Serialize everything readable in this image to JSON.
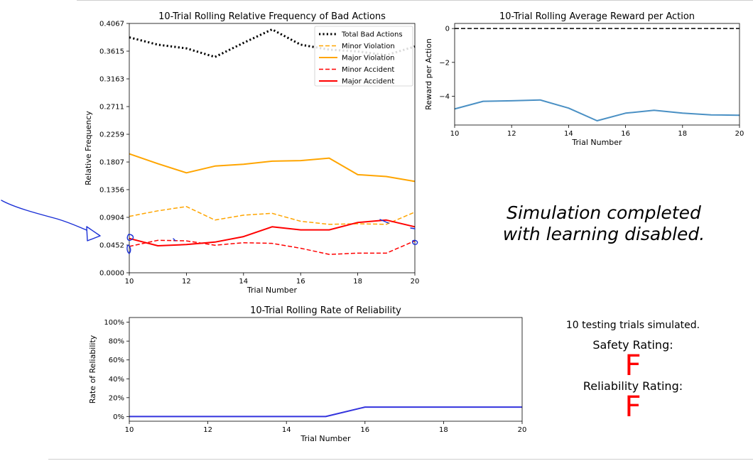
{
  "chart_data": [
    {
      "type": "line",
      "title": "10-Trial Rolling Relative Frequency of Bad Actions",
      "xlabel": "Trial Number",
      "ylabel": "Relative Frequency",
      "xlim": [
        10,
        20
      ],
      "ylim": [
        0,
        0.4067
      ],
      "xticks": [
        "10",
        "12",
        "14",
        "16",
        "18",
        "20"
      ],
      "yticks": [
        "0.0000",
        "0.0452",
        "0.0904",
        "0.1356",
        "0.1807",
        "0.2259",
        "0.2711",
        "0.3163",
        "0.3615",
        "0.4067"
      ],
      "legend_position": "top-right",
      "x": [
        10,
        11,
        12,
        13,
        14,
        15,
        16,
        17,
        18,
        19,
        20
      ],
      "series": [
        {
          "name": "Total Bad Actions",
          "color": "#000000",
          "style": "dotted",
          "values": [
            0.384,
            0.372,
            0.366,
            0.352,
            0.375,
            0.397,
            0.372,
            0.364,
            0.361,
            0.355,
            0.369
          ]
        },
        {
          "name": "Minor Violation",
          "color": "#ffa500",
          "style": "dashed",
          "values": [
            0.092,
            0.101,
            0.108,
            0.086,
            0.094,
            0.097,
            0.084,
            0.079,
            0.08,
            0.079,
            0.099
          ]
        },
        {
          "name": "Major Violation",
          "color": "#ffa500",
          "style": "solid",
          "values": [
            0.194,
            0.178,
            0.163,
            0.174,
            0.177,
            0.182,
            0.183,
            0.187,
            0.16,
            0.157,
            0.149
          ]
        },
        {
          "name": "Minor Accident",
          "color": "#ff0000",
          "style": "dashed",
          "values": [
            0.043,
            0.053,
            0.052,
            0.045,
            0.049,
            0.048,
            0.04,
            0.03,
            0.032,
            0.032,
            0.052
          ]
        },
        {
          "name": "Major Accident",
          "color": "#ff0000",
          "style": "solid",
          "values": [
            0.056,
            0.044,
            0.046,
            0.05,
            0.059,
            0.075,
            0.07,
            0.07,
            0.082,
            0.086,
            0.075
          ]
        }
      ]
    },
    {
      "type": "line",
      "title": "10-Trial Rolling Average Reward per Action",
      "xlabel": "Trial Number",
      "ylabel": "Reward per Action",
      "xlim": [
        10,
        20
      ],
      "ylim": [
        -5.7,
        0.3
      ],
      "xticks": [
        "10",
        "12",
        "14",
        "16",
        "18",
        "20"
      ],
      "yticks": [
        "0",
        "−2",
        "−4"
      ],
      "reference_line": {
        "y": 0,
        "color": "#000000",
        "style": "dashed"
      },
      "x": [
        10,
        11,
        12,
        13,
        14,
        15,
        16,
        17,
        18,
        19,
        20
      ],
      "series": [
        {
          "color": "#4a90c4",
          "values": [
            -4.75,
            -4.3,
            -4.27,
            -4.22,
            -4.7,
            -5.45,
            -5.0,
            -4.83,
            -5.0,
            -5.1,
            -5.12
          ]
        }
      ]
    },
    {
      "type": "line",
      "title": "10-Trial Rolling Rate of Reliability",
      "xlabel": "Trial Number",
      "ylabel": "Rate of Reliability",
      "xlim": [
        10,
        20
      ],
      "ylim": [
        -5,
        105
      ],
      "xticks": [
        "10",
        "12",
        "14",
        "16",
        "18",
        "20"
      ],
      "yticks": [
        "0%",
        "20%",
        "40%",
        "60%",
        "80%",
        "100%"
      ],
      "x": [
        10,
        11,
        12,
        13,
        14,
        15,
        16,
        17,
        18,
        19,
        20
      ],
      "series": [
        {
          "color": "#3333dd",
          "values": [
            0,
            0,
            0,
            0,
            0,
            0,
            10,
            10,
            10,
            10,
            10
          ]
        }
      ]
    }
  ],
  "status": {
    "message_line1": "Simulation completed",
    "message_line2": "with learning disabled.",
    "trials_text": "10 testing trials simulated.",
    "safety_label": "Safety Rating:",
    "safety_grade": "F",
    "reliability_label": "Reliability Rating:",
    "reliability_grade": "F",
    "grade_color": "#ff0000"
  },
  "annotation_color": "#1a2fd6"
}
